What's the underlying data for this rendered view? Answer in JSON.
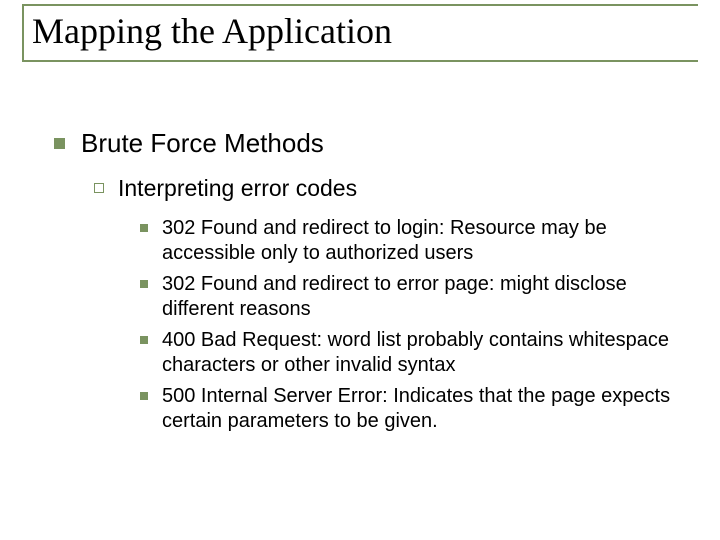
{
  "colors": {
    "rule": "#7a9360",
    "bullet_filled": "#7a9360",
    "bullet_outline": "#7a9360",
    "title_text": "#000000",
    "body_text": "#000000",
    "background": "#ffffff"
  },
  "typography": {
    "title_font": "Times New Roman",
    "body_font": "Arial",
    "title_fontsize": 36,
    "lvl1_fontsize": 26,
    "lvl2_fontsize": 23,
    "lvl3_fontsize": 20
  },
  "title": "Mapping the Application",
  "lvl1": {
    "text": "Brute Force Methods"
  },
  "lvl2": {
    "text": "Interpreting error codes"
  },
  "lvl3_items": [
    "302 Found and redirect to login: Resource may be accessible only to authorized users",
    "302 Found and redirect to error page: might disclose different reasons",
    "400 Bad Request: word list probably contains whitespace characters or other invalid syntax",
    "500 Internal Server Error: Indicates that the page expects certain parameters to be given."
  ]
}
